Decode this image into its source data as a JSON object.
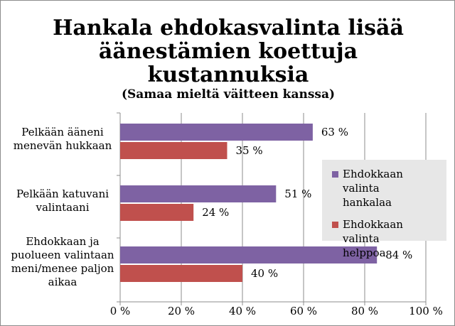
{
  "colors": {
    "series1": "#7e62a3",
    "series2": "#c0504d",
    "grid": "#8c8c8c",
    "axis": "#8c8c8c"
  },
  "chart_data": {
    "type": "bar",
    "orientation": "horizontal",
    "title_lines": [
      "Hankala ehdokasvalinta lisää",
      "äänestämien koettuja",
      "kustannuksia"
    ],
    "subtitle": "(Samaa mieltä väitteen kanssa)",
    "categories": [
      {
        "lines": [
          "Pelkään ääneni",
          "menevän hukkaan"
        ]
      },
      {
        "lines": [
          "Pelkään katuvani",
          "valintaani"
        ]
      },
      {
        "lines": [
          "Ehdokkaan ja",
          "puolueen valintaan",
          "meni/menee paljon",
          "aikaa"
        ]
      }
    ],
    "series": [
      {
        "name": "Ehdokkaan valinta hankalaa",
        "legend_lines": [
          "Ehdokkaan valinta",
          "hankalaa"
        ],
        "values": [
          63,
          51,
          84
        ],
        "labels": [
          "63 %",
          "51 %",
          "84 %"
        ]
      },
      {
        "name": "Ehdokkaan valinta helppoa",
        "legend_lines": [
          "Ehdokkaan valinta",
          "helppoa"
        ],
        "values": [
          35,
          24,
          40
        ],
        "labels": [
          "35 %",
          "24 %",
          "40 %"
        ]
      }
    ],
    "xlim": [
      0,
      100
    ],
    "xticks": [
      0,
      20,
      40,
      60,
      80,
      100
    ],
    "xtick_labels": [
      "0 %",
      "20 %",
      "40 %",
      "60 %",
      "80 %",
      "100 %"
    ],
    "grid": true,
    "legend_position": "right"
  }
}
